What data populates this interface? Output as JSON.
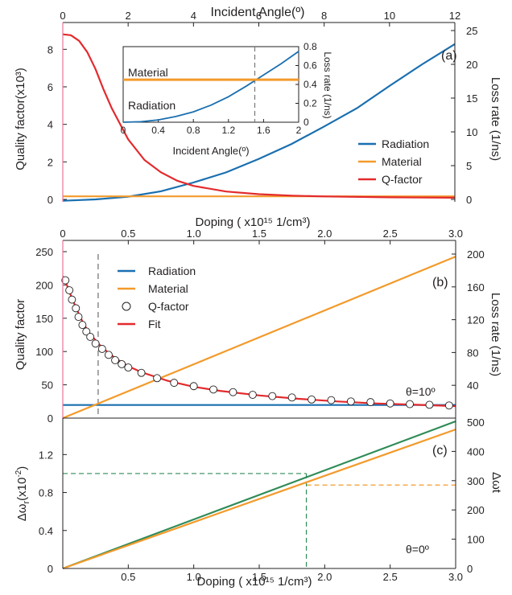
{
  "colors": {
    "radiation": "#1a6fb0",
    "material": "#f39a2b",
    "qfactor": "#e32a2d",
    "green": "#2e8b57",
    "axis": "#231f20",
    "dash": "#777777",
    "pink_axis": "#e8749a"
  },
  "chart_data": [
    {
      "panel": "(a)",
      "type": "line",
      "xlabel": "Incident Angle(º)",
      "x_ticks": [
        "0",
        "2",
        "4",
        "6",
        "8",
        "10",
        "12"
      ],
      "xlim": [
        0,
        12
      ],
      "ylabel": "Quality factor(x10³)",
      "ylim": [
        0,
        9
      ],
      "y_ticks": [
        "0",
        "2",
        "4",
        "6",
        "8"
      ],
      "ylabel_right": "Loss rate (1/ns)",
      "ylim_right": [
        0,
        25
      ],
      "y_ticks_right": [
        "0",
        "5",
        "10",
        "15",
        "20",
        "25"
      ],
      "legend": [
        "Radiation",
        "Material",
        "Q-factor"
      ],
      "series": [
        {
          "name": "Radiation",
          "axis": "right",
          "x": [
            0,
            1,
            2,
            3,
            4,
            5,
            6,
            7,
            8,
            9,
            10,
            11,
            12
          ],
          "y": [
            -0.2,
            0.0,
            0.4,
            1.2,
            2.5,
            4.0,
            6.0,
            8.2,
            10.8,
            13.5,
            16.8,
            20.0,
            23.0
          ]
        },
        {
          "name": "Material",
          "axis": "right",
          "x": [
            0,
            12
          ],
          "y": [
            0.45,
            0.45
          ]
        },
        {
          "name": "Q-factor",
          "axis": "left",
          "x": [
            0,
            0.25,
            0.5,
            0.75,
            1,
            1.25,
            1.5,
            2,
            2.5,
            3,
            3.5,
            4,
            5,
            6,
            7,
            8,
            10,
            12
          ],
          "y": [
            8.8,
            8.75,
            8.45,
            7.85,
            6.95,
            5.85,
            4.85,
            3.2,
            2.1,
            1.45,
            1.0,
            0.72,
            0.42,
            0.28,
            0.2,
            0.16,
            0.11,
            0.09
          ]
        }
      ],
      "inset": {
        "xlabel": "Incident Angle(º)",
        "xlim": [
          0,
          2
        ],
        "x_ticks": [
          "0",
          "0.4",
          "0.8",
          "1.2",
          "1.6",
          "2"
        ],
        "ylabel_right": "Loss rate (1/ns)",
        "ylim": [
          0,
          0.8
        ],
        "y_ticks_right": [
          "0",
          "0.2",
          "0.4",
          "0.6",
          "0.8"
        ],
        "annotations": [
          "Material",
          "Radiation"
        ],
        "dashed_x": 1.5,
        "series": [
          {
            "name": "Radiation",
            "x": [
              0,
              0.2,
              0.4,
              0.6,
              0.8,
              1.0,
              1.2,
              1.4,
              1.6,
              1.8,
              2.0
            ],
            "y": [
              0.0,
              0.005,
              0.025,
              0.06,
              0.11,
              0.18,
              0.27,
              0.38,
              0.5,
              0.62,
              0.75
            ]
          },
          {
            "name": "Material",
            "x": [
              0,
              2
            ],
            "y": [
              0.45,
              0.45
            ]
          }
        ]
      }
    },
    {
      "panel": "(b)",
      "type": "line",
      "xlabel": "Doping ( x10¹⁵ 1/cm³)",
      "xlim": [
        0,
        3
      ],
      "x_ticks": [
        "0",
        "0.5",
        "1.0",
        "1.5",
        "2.0",
        "2.5",
        "3.0"
      ],
      "ylabel": "Quality factor",
      "ylim": [
        0,
        250
      ],
      "y_ticks": [
        "0",
        "50",
        "100",
        "150",
        "200",
        "250"
      ],
      "ylabel_right": "Loss rate (1/ns)",
      "ylim_right": [
        0,
        200
      ],
      "y_ticks_right": [
        "40",
        "80",
        "120",
        "160",
        "200"
      ],
      "legend": [
        "Radiation",
        "Material",
        "Q-factor",
        "Fit"
      ],
      "annotation": "θ=10º",
      "dashed_x": 0.27,
      "series": [
        {
          "name": "Radiation",
          "axis": "right",
          "x": [
            0,
            3
          ],
          "y": [
            16,
            16
          ]
        },
        {
          "name": "Material",
          "axis": "right",
          "x": [
            0,
            3
          ],
          "y": [
            0,
            197
          ]
        },
        {
          "name": "Q-factor",
          "axis": "left",
          "kind": "markers",
          "x": [
            0.02,
            0.05,
            0.07,
            0.1,
            0.12,
            0.15,
            0.18,
            0.21,
            0.25,
            0.3,
            0.35,
            0.4,
            0.45,
            0.5,
            0.6,
            0.72,
            0.85,
            1.0,
            1.15,
            1.3,
            1.45,
            1.6,
            1.75,
            1.9,
            2.05,
            2.2,
            2.35,
            2.5,
            2.65,
            2.8,
            2.95
          ],
          "y": [
            207,
            192,
            178,
            165,
            152,
            140,
            130,
            122,
            112,
            104,
            95,
            87,
            81,
            76,
            68,
            60,
            53,
            48,
            43,
            39,
            35,
            33,
            31,
            28,
            27,
            25,
            24,
            22,
            21,
            20,
            19
          ]
        },
        {
          "name": "Fit",
          "axis": "left",
          "x": [
            0.0,
            0.02,
            0.05,
            0.1,
            0.15,
            0.2,
            0.3,
            0.4,
            0.5,
            0.6,
            0.8,
            1.0,
            1.2,
            1.5,
            1.8,
            2.1,
            2.4,
            2.7,
            3.0
          ],
          "y": [
            213,
            206,
            190,
            166,
            145,
            128,
            106,
            90,
            78,
            69,
            56,
            47,
            41,
            34,
            29,
            25,
            22,
            20,
            18
          ]
        }
      ]
    },
    {
      "panel": "(c)",
      "type": "line",
      "xlabel": "Doping ( x10¹⁵ 1/cm³)",
      "xlim": [
        0,
        3
      ],
      "x_ticks": [
        "0.5",
        "1.0",
        "1.5",
        "2.0",
        "2.5",
        "3.0"
      ],
      "ylabel": "Δωr(x10⁻²)",
      "ylim": [
        0,
        1.55
      ],
      "y_ticks": [
        "0",
        "0.4",
        "0.8",
        "1.2"
      ],
      "ylabel_right": "Δωt",
      "ylim_right": [
        0,
        500
      ],
      "y_ticks_right": [
        "0",
        "100",
        "200",
        "300",
        "400",
        "500"
      ],
      "annotation": "θ=0º",
      "guides": {
        "x": 1.86,
        "y_left": 1.0,
        "y_right": 285
      },
      "series": [
        {
          "name": "Δωr",
          "axis": "left",
          "x": [
            0,
            3
          ],
          "y": [
            0,
            1.55
          ]
        },
        {
          "name": "Δωt",
          "axis": "right",
          "x": [
            0,
            3
          ],
          "y": [
            0,
            475
          ]
        }
      ]
    }
  ],
  "labels": {
    "a_title": "Incident Angle(º)",
    "a_ylabel": "Quality factor(x10³)",
    "a_ylabel_right": "Loss rate (1/ns)",
    "a_panel": "(a)",
    "a_legend_rad": "Radiation",
    "a_legend_mat": "Material",
    "a_legend_q": "Q-factor",
    "inset_material": "Material",
    "inset_radiation": "Radiation",
    "inset_xlabel": "Incident Angle(º)",
    "inset_ylabel": "Loss rate (1/ns)",
    "b_title": "Doping ( x10¹⁵ 1/cm³)",
    "b_ylabel": "Quality factor",
    "b_ylabel_right": "Loss rate (1/ns)",
    "b_panel": "(b)",
    "b_legend_rad": "Radiation",
    "b_legend_mat": "Material",
    "b_legend_q": "Q-factor",
    "b_legend_fit": "Fit",
    "b_theta": "θ=10º",
    "c_panel": "(c)",
    "c_theta": "θ=0º",
    "c_ylabel_right": "Δωt",
    "c_xlabel": "Doping ( x10¹⁵ 1/cm³)"
  }
}
